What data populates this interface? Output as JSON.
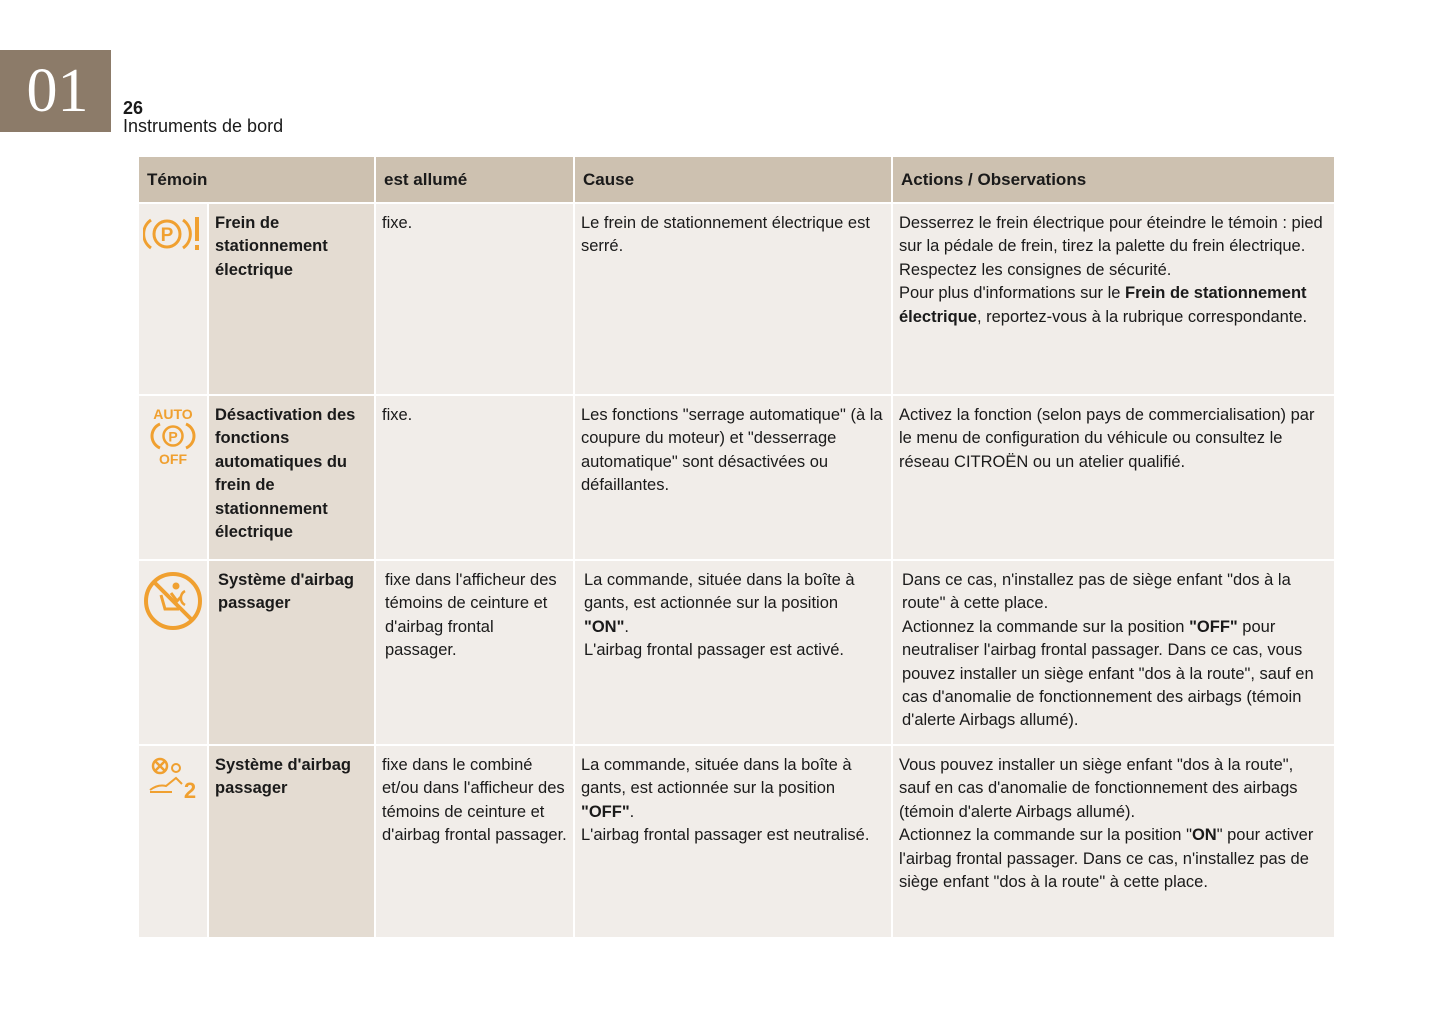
{
  "chapter": "01",
  "page_number": "26",
  "section_title": "Instruments de bord",
  "accent_color": "#f0a030",
  "headers": [
    "Témoin",
    "est allumé",
    "Cause",
    "Actions / Observations"
  ],
  "rows": [
    {
      "icon": "parking-brake-warning-icon",
      "name": "Frein de stationnement électrique",
      "lit": "fixe.",
      "cause": [
        "Le frein de stationnement électrique est serré."
      ],
      "actions": [
        "Desserrez le frein électrique pour éteindre le témoin : pied sur la pédale de frein, tirez la palette du frein électrique.",
        "Respectez les consignes de sécurité.",
        "Pour plus d'informations sur le ",
        "Frein de stationnement électrique",
        ", reportez-vous à la rubrique correspondante."
      ]
    },
    {
      "icon": "auto-parking-brake-off-icon",
      "icon_text_top": "AUTO",
      "icon_text_bottom": "OFF",
      "name": "Désactivation des fonctions automatiques du frein de stationnement électrique",
      "lit": "fixe.",
      "cause": [
        "Les fonctions \"serrage automatique\" (à la coupure du moteur) et \"desserrage automatique\" sont désactivées ou défaillantes."
      ],
      "actions": [
        "Activez la fonction (selon pays de commercialisation) par le menu de configuration du véhicule ou consultez le réseau CITROËN ou un atelier qualifié."
      ]
    },
    {
      "icon": "passenger-airbag-off-icon",
      "name": "Système d'airbag passager",
      "lit": "fixe dans l'afficheur des témoins de ceinture et d'airbag frontal passager.",
      "cause": [
        "La commande, située dans la boîte à gants, est actionnée sur la position ",
        "\"ON\"",
        ".",
        "L'airbag frontal passager est activé."
      ],
      "actions": [
        "Dans ce cas, n'installez pas de siège enfant \"dos à la route\" à cette place.",
        "Actionnez la commande sur la position ",
        "\"OFF\"",
        " pour neutraliser l'airbag frontal passager. Dans ce cas, vous pouvez installer un siège enfant \"dos à la route\", sauf en cas d'anomalie de fonctionnement des airbags (témoin d'alerte Airbags allumé)."
      ]
    },
    {
      "icon": "passenger-airbag-deactivated-icon",
      "icon_text": "2",
      "name": "Système d'airbag passager",
      "lit": "fixe dans le combiné et/ou dans l'afficheur des témoins de ceinture et d'airbag frontal passager.",
      "cause": [
        "La commande, située dans la boîte à gants, est actionnée sur la position ",
        "\"OFF\"",
        ".",
        "L'airbag frontal passager est neutralisé."
      ],
      "actions": [
        "Vous pouvez installer un siège enfant \"dos à la route\", sauf en cas d'anomalie de fonctionnement des airbags (témoin d'alerte Airbags allumé).",
        "Actionnez la commande sur la position \"",
        "ON",
        "\" pour activer l'airbag frontal passager. Dans ce cas, n'installez pas de siège enfant \"dos à la route\" à cette place."
      ]
    }
  ]
}
